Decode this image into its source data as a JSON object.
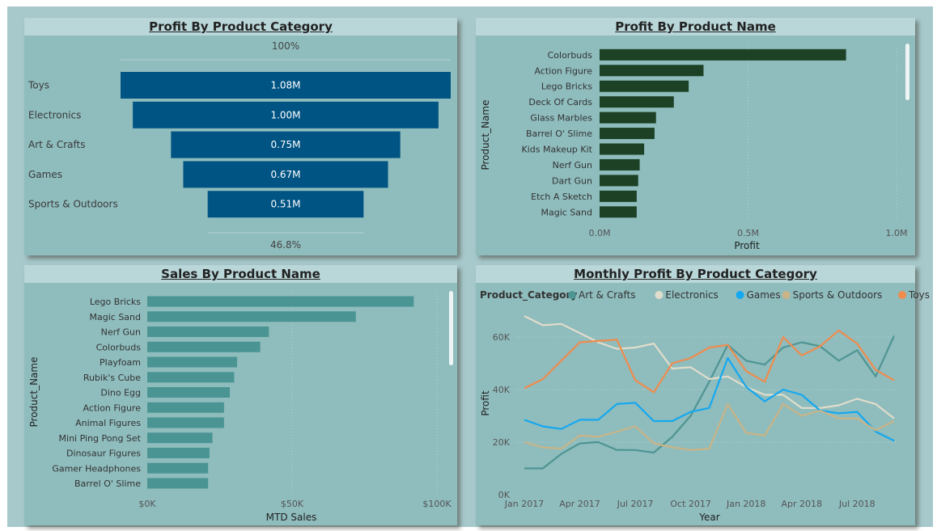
{
  "funnel": {
    "title": "Profit By Product Category",
    "top_label": "100%",
    "bottom_label": "46.8%"
  },
  "profit_by_name": {
    "title": "Profit By Product Name",
    "ylabel": "Product_Name",
    "xlabel": "Profit",
    "ticks": [
      "0.0M",
      "0.5M",
      "1.0M"
    ]
  },
  "sales_by_name": {
    "title": "Sales By Product Name",
    "ylabel": "Product_Name",
    "xlabel": "MTD Sales",
    "ticks": [
      "$0K",
      "$50K",
      "$100K"
    ]
  },
  "monthly": {
    "title": "Monthly Profit By Product Category",
    "legend_title": "Product_Category",
    "ylabel": "Profit",
    "xlabel": "Year",
    "yticks": [
      "0K",
      "20K",
      "40K",
      "60K"
    ],
    "xticks": [
      "Jan 2017",
      "Apr 2017",
      "Jul 2017",
      "Oct 2017",
      "Jan 2018",
      "Apr 2018",
      "Jul 2018"
    ]
  },
  "colors": {
    "funnel_bar": "#005483",
    "profit_bar": "#1c4124",
    "sales_bar": "#4a9594",
    "art_crafts": "#4e9593",
    "electronics": "#e0ddcb",
    "games": "#14a8f0",
    "sports": "#c9b487",
    "toys": "#ef8c4e"
  },
  "chart_data": [
    {
      "type": "funnel",
      "title": "Profit By Product Category",
      "categories": [
        "Toys",
        "Electronics",
        "Art & Crafts",
        "Games",
        "Sports & Outdoors"
      ],
      "values": [
        1.08,
        1.0,
        0.75,
        0.67,
        0.51
      ],
      "value_labels": [
        "1.08M",
        "1.00M",
        "0.75M",
        "0.67M",
        "0.51M"
      ],
      "unit": "M"
    },
    {
      "type": "bar",
      "orientation": "horizontal",
      "title": "Profit By Product Name",
      "categories": [
        "Colorbuds",
        "Action Figure",
        "Lego Bricks",
        "Deck Of Cards",
        "Glass Marbles",
        "Barrel O' Slime",
        "Kids Makeup Kit",
        "Nerf Gun",
        "Dart Gun",
        "Etch A Sketch",
        "Magic Sand"
      ],
      "values": [
        0.83,
        0.35,
        0.3,
        0.25,
        0.19,
        0.185,
        0.15,
        0.135,
        0.13,
        0.125,
        0.125
      ],
      "xlabel": "Profit",
      "ylabel": "Product_Name",
      "xlim": [
        0,
        1.0
      ],
      "unit": "M"
    },
    {
      "type": "bar",
      "orientation": "horizontal",
      "title": "Sales By Product Name",
      "categories": [
        "Lego Bricks",
        "Magic Sand",
        "Nerf Gun",
        "Colorbuds",
        "Playfoam",
        "Rubik's Cube",
        "Dino Egg",
        "Action Figure",
        "Animal Figures",
        "Mini Ping Pong Set",
        "Dinosaur Figures",
        "Gamer Headphones",
        "Barrel O' Slime"
      ],
      "values": [
        92,
        72,
        42,
        39,
        31,
        30,
        28.5,
        26.5,
        26.5,
        22.5,
        21.5,
        21,
        21
      ],
      "xlabel": "MTD Sales",
      "ylabel": "Product_Name",
      "xlim": [
        0,
        100
      ],
      "unit": "$K"
    },
    {
      "type": "line",
      "title": "Monthly Profit By Product Category",
      "x": [
        "2017-01",
        "2017-02",
        "2017-03",
        "2017-04",
        "2017-05",
        "2017-06",
        "2017-07",
        "2017-08",
        "2017-09",
        "2017-10",
        "2017-11",
        "2017-12",
        "2018-01",
        "2018-02",
        "2018-03",
        "2018-04",
        "2018-05",
        "2018-06",
        "2018-07",
        "2018-08",
        "2018-09"
      ],
      "xlabel": "Year",
      "ylabel": "Profit",
      "ylim": [
        0,
        70
      ],
      "unit": "K",
      "legend_title": "Product_Category",
      "legend_position": "top",
      "series": [
        {
          "name": "Art & Crafts",
          "values": [
            10,
            10,
            15.5,
            19.5,
            20,
            17,
            17,
            16,
            22,
            30,
            43,
            57,
            51,
            49.5,
            56,
            58,
            56.5,
            51,
            55,
            45,
            60.5
          ]
        },
        {
          "name": "Electronics",
          "values": [
            68,
            64.5,
            65,
            61.5,
            58,
            55.5,
            56,
            57.5,
            48,
            48.5,
            44,
            45,
            41,
            38,
            38,
            33,
            33,
            34,
            36.5,
            34.5,
            29
          ]
        },
        {
          "name": "Games",
          "values": [
            28.5,
            26,
            25,
            28.5,
            28.5,
            34.5,
            35,
            28,
            28,
            31.5,
            33,
            52,
            41,
            35.5,
            40,
            38,
            32,
            31,
            31.5,
            24,
            20.5
          ]
        },
        {
          "name": "Sports & Outdoors",
          "values": [
            20,
            18,
            17.5,
            22.5,
            22,
            24,
            26,
            19.5,
            18,
            17,
            17.5,
            34.5,
            23.5,
            22.5,
            34.5,
            30,
            32,
            29,
            29,
            24.5,
            28
          ]
        },
        {
          "name": "Toys",
          "values": [
            40.5,
            44,
            51,
            58,
            58.5,
            59,
            43.5,
            39,
            50,
            52,
            56,
            57,
            47,
            43,
            60,
            53,
            56.5,
            62.5,
            57.5,
            47.5,
            43.5
          ]
        }
      ]
    }
  ]
}
